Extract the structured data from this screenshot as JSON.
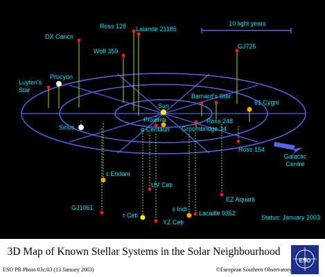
{
  "colors": {
    "background": "#000000",
    "grid": "#5b63e8",
    "label": "#00e5ff",
    "stalk_above": "#8fe03a",
    "stalk_below": "#8fe03a",
    "star_red": "#ff1a1a",
    "star_orange": "#ffaa00",
    "star_yellow": "#ffee22",
    "star_white": "#ffffff",
    "status": "#00e5ff"
  },
  "scale_bar": {
    "label": "10 light years"
  },
  "galactic_centre": {
    "line1": "Galactic",
    "line2": "Centre"
  },
  "status": "Status: January 2003",
  "caption": {
    "title": "3D Map of Known Stellar Systems in the Solar Neighbourhood",
    "left": "ESO PR Photo 03c/03 (13 January 2003)",
    "right": "©European Southern Observatory"
  },
  "logo": {
    "text": "ESO"
  },
  "stars": [
    {
      "label": "Sun",
      "color": "yellow",
      "side": "center"
    },
    {
      "label": "Proxima",
      "color": "red",
      "side": "below"
    },
    {
      "label": "α Centauri",
      "color": "orange",
      "side": "below"
    },
    {
      "label": "Barnard's Star",
      "color": "red",
      "side": "above"
    },
    {
      "label": "Ross 248",
      "color": "red",
      "side": "above"
    },
    {
      "label": "Groombridge 34",
      "color": "red",
      "side": "above"
    },
    {
      "label": "61 Cygni",
      "color": "orange",
      "side": "above"
    },
    {
      "label": "GJ725",
      "color": "red",
      "side": "above"
    },
    {
      "label": "Ross 154",
      "color": "red",
      "side": "below"
    },
    {
      "label": "Ross 128",
      "color": "red",
      "side": "above"
    },
    {
      "label": "Lalande 21185",
      "color": "red",
      "side": "above"
    },
    {
      "label": "Wolf 359",
      "color": "red",
      "side": "above"
    },
    {
      "label": "DX Cancri",
      "color": "red",
      "side": "above"
    },
    {
      "label": "Procyon",
      "color": "white",
      "side": "above"
    },
    {
      "label": "Luyten's Star",
      "color": "red",
      "side": "above"
    },
    {
      "label": "Sirius",
      "color": "white",
      "side": "below"
    },
    {
      "label": "ε Eridani",
      "color": "orange",
      "side": "below"
    },
    {
      "label": "UV Ceti",
      "color": "red",
      "side": "below"
    },
    {
      "label": "GJ1061",
      "color": "red",
      "side": "below"
    },
    {
      "label": "τ Ceti",
      "color": "yellow",
      "side": "below"
    },
    {
      "label": "YZ Ceti",
      "color": "red",
      "side": "below"
    },
    {
      "label": "ε Indi",
      "color": "orange",
      "side": "below"
    },
    {
      "label": "Lacaille 9352",
      "color": "red",
      "side": "below"
    },
    {
      "label": "EZ Aquarii",
      "color": "red",
      "side": "below"
    }
  ]
}
